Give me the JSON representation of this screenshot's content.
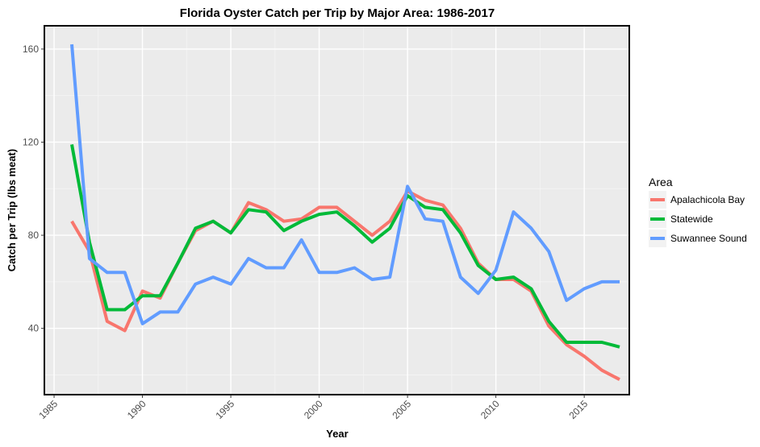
{
  "chart_data": {
    "type": "line",
    "title": "Florida Oyster Catch per Trip by Major Area: 1986-2017",
    "xlabel": "Year",
    "ylabel": "Catch per Trip (lbs meat)",
    "xlim": [
      1984.45,
      1988.55
    ],
    "ylim": [
      11.5,
      170
    ],
    "x_ticks": [
      1985,
      1990,
      1995,
      2000,
      2005,
      2010,
      2015
    ],
    "y_ticks": [
      40,
      80,
      120,
      160
    ],
    "grid": true,
    "legend": {
      "title": "Area",
      "position": "right"
    },
    "x": [
      1986,
      1987,
      1988,
      1989,
      1990,
      1991,
      1992,
      1993,
      1994,
      1995,
      1996,
      1997,
      1998,
      1999,
      2000,
      2001,
      2002,
      2003,
      2004,
      2005,
      2006,
      2007,
      2008,
      2009,
      2010,
      2011,
      2012,
      2013,
      2014,
      2015,
      2016,
      2017
    ],
    "series": [
      {
        "name": "Apalachicola Bay",
        "color": "#F8766D",
        "values": [
          86,
          73,
          43,
          39,
          56,
          53,
          68,
          82,
          86,
          81,
          94,
          91,
          86,
          87,
          92,
          92,
          86,
          80,
          86,
          99,
          95,
          93,
          83,
          68,
          61,
          61,
          56,
          41,
          33,
          28,
          22,
          18
        ]
      },
      {
        "name": "Statewide",
        "color": "#00BA38",
        "values": [
          119,
          77,
          48,
          48,
          54,
          54,
          68,
          83,
          86,
          81,
          91,
          90,
          82,
          86,
          89,
          90,
          84,
          77,
          83,
          97,
          92,
          91,
          81,
          67,
          61,
          62,
          57,
          43,
          34,
          34,
          34,
          32
        ]
      },
      {
        "name": "Suwannee Sound",
        "color": "#619CFF",
        "values": [
          162,
          70,
          64,
          64,
          42,
          47,
          47,
          59,
          62,
          59,
          70,
          66,
          66,
          78,
          64,
          64,
          66,
          61,
          62,
          101,
          87,
          86,
          62,
          55,
          65,
          90,
          83,
          73,
          52,
          57,
          60,
          60
        ]
      }
    ]
  }
}
